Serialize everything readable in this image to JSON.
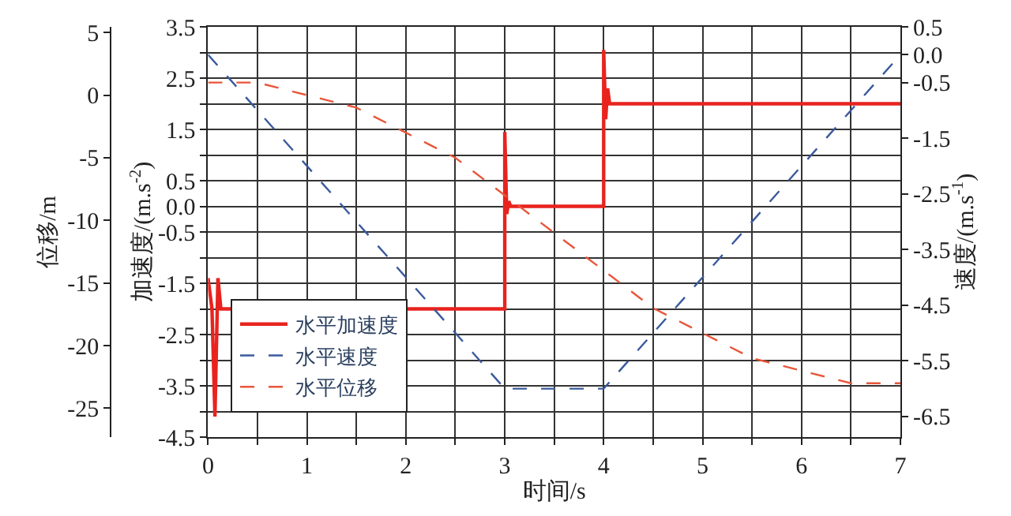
{
  "chart_data": {
    "type": "line",
    "xlabel": "时间/s",
    "ylabel": "加速度/(m.s$^{-2}$)",
    "y2label": "速度/(m.s$^{-1}$)",
    "y3label": "位移/m",
    "xlim": [
      0,
      7
    ],
    "xticks": [
      0,
      {
        "value": 0.5,
        "label": null
      },
      1,
      {
        "value": 1.5,
        "label": null
      },
      2,
      {
        "value": 2.5,
        "label": null
      },
      3,
      {
        "value": 3.5,
        "label": null
      },
      4,
      {
        "value": 4.5,
        "label": null
      },
      5,
      {
        "value": 5.5,
        "label": null
      },
      6,
      {
        "value": 6.5,
        "label": null
      },
      7
    ],
    "ylim": [
      -4.5,
      3.5
    ],
    "yticks": [
      3.5,
      {
        "value": 3.0,
        "label": null
      },
      2.5,
      {
        "value": 2.0,
        "label": null
      },
      1.5,
      {
        "value": 1.0,
        "label": null
      },
      0.5,
      {
        "value": 0,
        "label": "0.0"
      },
      -0.5,
      {
        "value": -1.0,
        "label": null
      },
      -1.5,
      {
        "value": -2.0,
        "label": null
      },
      -2.5,
      {
        "value": -3.0,
        "label": null
      },
      -3.5,
      {
        "value": -4.0,
        "label": null
      },
      -4.5
    ],
    "y2lim": [
      -6.87,
      0.5
    ],
    "y2ticks": [
      0.5,
      {
        "value": 0,
        "label": "0.0"
      },
      -0.5,
      -1.5,
      -2.5,
      -3.5,
      -4.5,
      -5.5,
      -6.5
    ],
    "y3lim": [
      -27.3,
      5.45
    ],
    "y3ticks": [
      5,
      0,
      -5,
      -10,
      -15,
      -20,
      -25
    ],
    "grid": true,
    "legend": "bottom left",
    "marker": "none",
    "series": [
      {
        "name": "水平加速度",
        "color": "#e8231e",
        "line_style": "solid",
        "axis": "y",
        "x": [
          0,
          0.04,
          0.07,
          0.1,
          0.13,
          3.0,
          3.0,
          3.02,
          3.04,
          3.06,
          4.0,
          4.0,
          4.02,
          4.04,
          4.06,
          7.0
        ],
        "values": [
          -1.4,
          -2.0,
          -4.1,
          -1.4,
          -2.0,
          -2.0,
          1.45,
          -0.15,
          0.1,
          0.0,
          0.0,
          3.05,
          1.7,
          2.3,
          2.0,
          2.0
        ]
      },
      {
        "name": "水平速度",
        "color": "#3a5a9c",
        "line_style": "dashed",
        "axis": "y2",
        "x": [
          0,
          3,
          4,
          7
        ],
        "values": [
          0,
          -6,
          -6,
          0
        ]
      },
      {
        "name": "水平位移",
        "color": "#e8563a",
        "line_style": "dashed",
        "axis": "y3",
        "x": [
          0,
          0.5,
          1,
          1.5,
          2,
          2.5,
          3,
          3.5,
          4,
          4.5,
          5,
          5.5,
          6,
          6.5,
          7
        ],
        "values": [
          1,
          1,
          0,
          -1,
          -3,
          -5,
          -8,
          -11,
          -14,
          -17,
          -19,
          -21,
          -22,
          -23,
          -23
        ]
      }
    ]
  }
}
